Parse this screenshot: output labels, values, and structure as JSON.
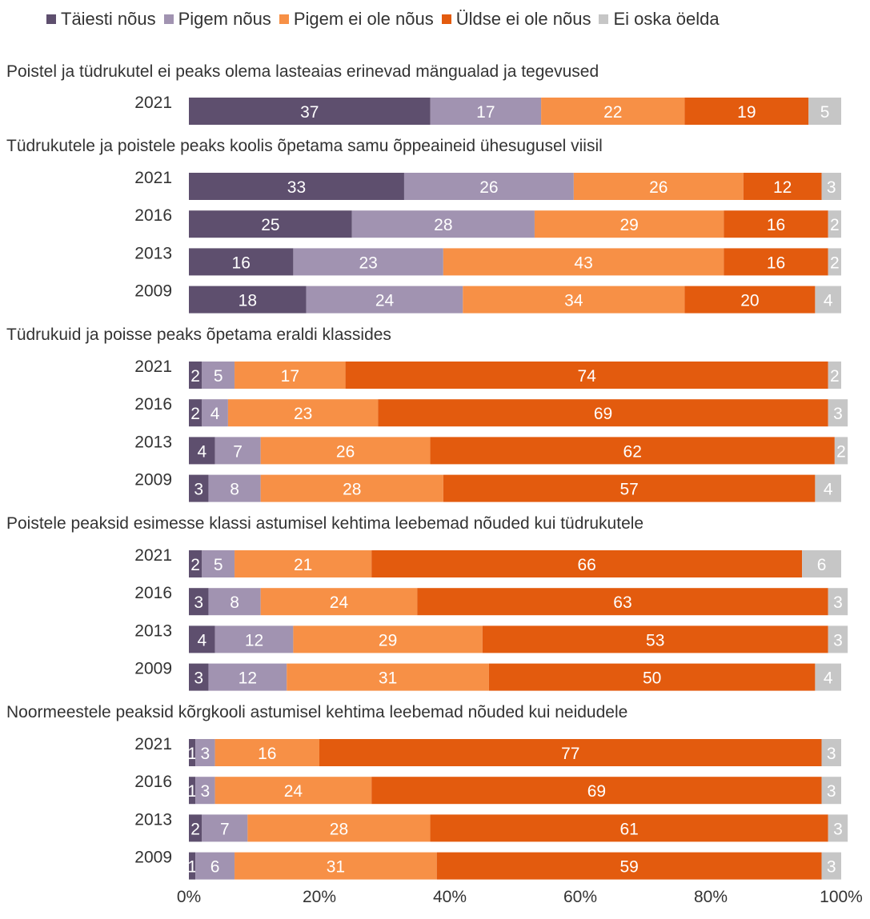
{
  "chart_data": {
    "type": "bar",
    "orientation": "horizontal",
    "stacked": true,
    "legend": {
      "position": "top",
      "entries": [
        {
          "label": "Täiesti nõus",
          "color": "#5e4f6e"
        },
        {
          "label": "Pigem nõus",
          "color": "#a193b1"
        },
        {
          "label": "Pigem ei ole nõus",
          "color": "#f79046"
        },
        {
          "label": "Üldse ei ole nõus",
          "color": "#e35b0e"
        },
        {
          "label": "Ei oska öelda",
          "color": "#c6c6c6"
        }
      ]
    },
    "xlim": [
      0,
      100
    ],
    "x_ticks": [
      "0%",
      "20%",
      "40%",
      "60%",
      "80%",
      "100%"
    ],
    "grid": false,
    "groups": [
      {
        "title": "Poistel ja tüdrukutel ei peaks olema lasteaias erinevad mängualad ja tegevused",
        "rows": [
          {
            "year": "2021",
            "values": [
              37,
              17,
              22,
              19,
              5
            ]
          }
        ]
      },
      {
        "title": "Tüdrukutele ja poistele peaks koolis õpetama samu õppeaineid ühesugusel viisil",
        "rows": [
          {
            "year": "2021",
            "values": [
              33,
              26,
              26,
              12,
              3
            ]
          },
          {
            "year": "2016",
            "values": [
              25,
              28,
              29,
              16,
              2
            ]
          },
          {
            "year": "2013",
            "values": [
              16,
              23,
              43,
              16,
              2
            ]
          },
          {
            "year": "2009",
            "values": [
              18,
              24,
              34,
              20,
              4
            ]
          }
        ]
      },
      {
        "title": "Tüdrukuid ja poisse peaks õpetama eraldi klassides",
        "rows": [
          {
            "year": "2021",
            "values": [
              2,
              5,
              17,
              74,
              2
            ]
          },
          {
            "year": "2016",
            "values": [
              2,
              4,
              23,
              69,
              3
            ]
          },
          {
            "year": "2013",
            "values": [
              4,
              7,
              26,
              62,
              2
            ]
          },
          {
            "year": "2009",
            "values": [
              3,
              8,
              28,
              57,
              4
            ]
          }
        ]
      },
      {
        "title": "Poistele peaksid esimesse klassi astumisel kehtima leebemad nõuded kui tüdrukutele",
        "rows": [
          {
            "year": "2021",
            "values": [
              2,
              5,
              21,
              66,
              6
            ]
          },
          {
            "year": "2016",
            "values": [
              3,
              8,
              24,
              63,
              3
            ]
          },
          {
            "year": "2013",
            "values": [
              4,
              12,
              29,
              53,
              3
            ]
          },
          {
            "year": "2009",
            "values": [
              3,
              12,
              31,
              50,
              4
            ]
          }
        ]
      },
      {
        "title": "Noormeestele peaksid kõrgkooli astumisel kehtima leebemad nõuded kui neidudele",
        "rows": [
          {
            "year": "2021",
            "values": [
              1,
              3,
              16,
              77,
              3
            ]
          },
          {
            "year": "2016",
            "values": [
              1,
              3,
              24,
              69,
              3
            ]
          },
          {
            "year": "2013",
            "values": [
              2,
              7,
              28,
              61,
              3
            ]
          },
          {
            "year": "2009",
            "values": [
              1,
              6,
              31,
              59,
              3
            ]
          }
        ]
      }
    ]
  }
}
